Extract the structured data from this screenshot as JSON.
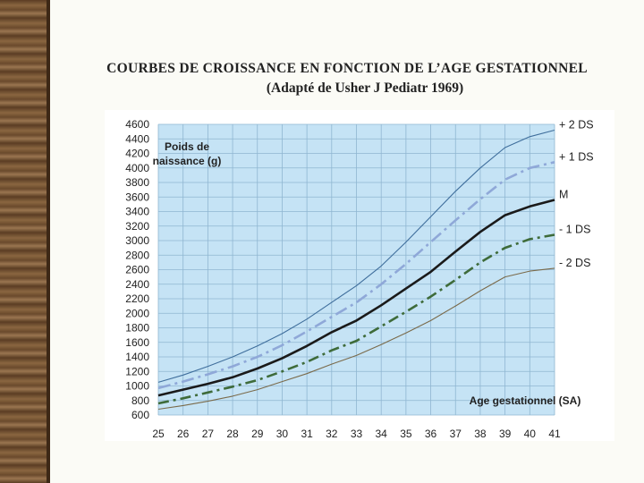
{
  "slide": {
    "title_line1": "COURBES DE CROISSANCE EN FONCTION DE L’AGE GESTATIONNEL",
    "title_line2": "(Adapté de Usher J Pediatr 1969)"
  },
  "colors": {
    "plot_bg": "#c5e3f5",
    "grid": "#8fb6d1",
    "plus2": "#3f6e9c",
    "plus1": "#8fa8d8",
    "median": "#1a1a1a",
    "minus1": "#3e6b3a",
    "minus2": "#7a6a4a"
  },
  "chart_data": {
    "type": "line",
    "title": "COURBES DE CROISSANCE EN FONCTION DE L’AGE GESTATIONNEL",
    "ylabel_line1": "Poids de",
    "ylabel_line2": "naissance (g)",
    "xlabel": "Age gestationnel (SA)",
    "xlim": [
      25,
      41
    ],
    "ylim": [
      600,
      4600
    ],
    "x": [
      25,
      26,
      27,
      28,
      29,
      30,
      31,
      32,
      33,
      34,
      35,
      36,
      37,
      38,
      39,
      40,
      41
    ],
    "x_ticks": [
      "25",
      "26",
      "27",
      "28",
      "29",
      "30",
      "31",
      "32",
      "33",
      "34",
      "35",
      "36",
      "37",
      "38",
      "39",
      "40",
      "41"
    ],
    "y_ticks": [
      "600",
      "800",
      "1000",
      "1200",
      "1400",
      "1600",
      "1800",
      "2000",
      "2200",
      "2400",
      "2600",
      "2800",
      "3000",
      "3200",
      "3400",
      "3600",
      "3800",
      "4000",
      "4200",
      "4400",
      "4600"
    ],
    "series": [
      {
        "name": "+ 2 DS",
        "key": "plus2",
        "values": [
          1050,
          1150,
          1270,
          1400,
          1550,
          1720,
          1920,
          2150,
          2380,
          2650,
          2980,
          3330,
          3680,
          4000,
          4280,
          4430,
          4520
        ]
      },
      {
        "name": "+ 1 DS",
        "key": "plus1",
        "values": [
          970,
          1060,
          1160,
          1270,
          1400,
          1560,
          1750,
          1950,
          2150,
          2400,
          2680,
          2980,
          3280,
          3570,
          3840,
          4000,
          4080
        ]
      },
      {
        "name": "M",
        "key": "median",
        "values": [
          870,
          950,
          1030,
          1120,
          1240,
          1380,
          1550,
          1740,
          1900,
          2110,
          2340,
          2570,
          2850,
          3120,
          3350,
          3470,
          3560
        ]
      },
      {
        "name": "- 1 DS",
        "key": "minus1",
        "values": [
          760,
          830,
          910,
          990,
          1080,
          1200,
          1330,
          1490,
          1620,
          1820,
          2020,
          2230,
          2460,
          2700,
          2900,
          3020,
          3080
        ]
      },
      {
        "name": "- 2 DS",
        "key": "minus2",
        "values": [
          680,
          730,
          790,
          860,
          950,
          1060,
          1170,
          1300,
          1420,
          1570,
          1730,
          1900,
          2100,
          2310,
          2500,
          2580,
          2620
        ]
      }
    ]
  }
}
